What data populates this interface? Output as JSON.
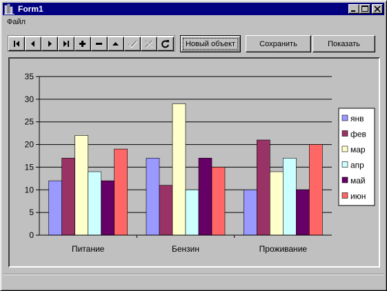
{
  "window": {
    "title": "Form1"
  },
  "menu": {
    "items": [
      "Файл"
    ]
  },
  "navigator": {
    "buttons": [
      "first",
      "prior",
      "next",
      "last",
      "insert",
      "delete",
      "edit",
      "post",
      "cancel",
      "refresh"
    ]
  },
  "toolbar": {
    "new_object_label": "Новый объект",
    "save_label": "Сохранить",
    "show_label": "Показать"
  },
  "colors": {
    "янв": "#9999ff",
    "фев": "#993366",
    "мар": "#ffffcc",
    "апр": "#ccffff",
    "май": "#660066",
    "июн": "#ff6666"
  },
  "chart_data": {
    "type": "bar",
    "categories": [
      "Питание",
      "Бензин",
      "Проживание"
    ],
    "series": [
      {
        "name": "янв",
        "values": [
          12,
          17,
          10
        ]
      },
      {
        "name": "фев",
        "values": [
          17,
          11,
          21
        ]
      },
      {
        "name": "мар",
        "values": [
          22,
          29,
          14
        ]
      },
      {
        "name": "апр",
        "values": [
          14,
          10,
          17
        ]
      },
      {
        "name": "май",
        "values": [
          12,
          17,
          10
        ]
      },
      {
        "name": "июн",
        "values": [
          19,
          15,
          20
        ]
      }
    ],
    "ylim": [
      0,
      35
    ],
    "yticks": [
      "0",
      "5",
      "10",
      "15",
      "20",
      "25",
      "30",
      "35"
    ],
    "grid": true,
    "legend": "right"
  }
}
